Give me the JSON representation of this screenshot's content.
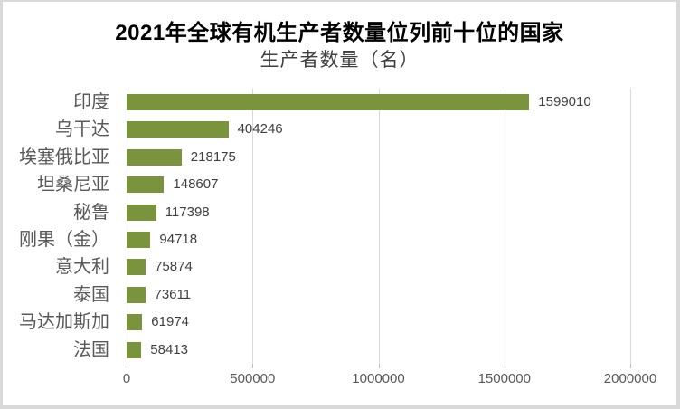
{
  "chart_data": {
    "type": "bar",
    "orientation": "horizontal",
    "title": "2021年全球有机生产者数量位列前十位的国家",
    "subtitle": "生产者数量（名）",
    "categories": [
      "印度",
      "乌干达",
      "埃塞俄比亚",
      "坦桑尼亚",
      "秘鲁",
      "刚果（金）",
      "意大利",
      "泰国",
      "马达加斯加",
      "法国"
    ],
    "values": [
      1599010,
      404246,
      218175,
      148607,
      117398,
      94718,
      75874,
      73611,
      61974,
      58413
    ],
    "data_labels": [
      "1599010",
      "404246",
      "218175",
      "148607",
      "117398",
      "94718",
      "75874",
      "73611",
      "61974",
      "58413"
    ],
    "xlim": [
      0,
      2000000
    ],
    "x_tick_values": [
      0,
      500000,
      1000000,
      1500000,
      2000000
    ],
    "x_tick_labels": [
      "0",
      "500000",
      "1000000",
      "1500000",
      "2000000"
    ],
    "grid": true,
    "legend": "none",
    "colors": {
      "bar": "#7a943e",
      "gridline": "#d9d9d9",
      "axis_line": "#d2d2d2",
      "tick_mark": "#bfbfbf",
      "category_label": "#595959",
      "x_tick_label": "#595959",
      "value_label": "#3f3f3f",
      "title": "#000000",
      "subtitle": "#404040",
      "frame_border": "#d9d9d9"
    }
  }
}
